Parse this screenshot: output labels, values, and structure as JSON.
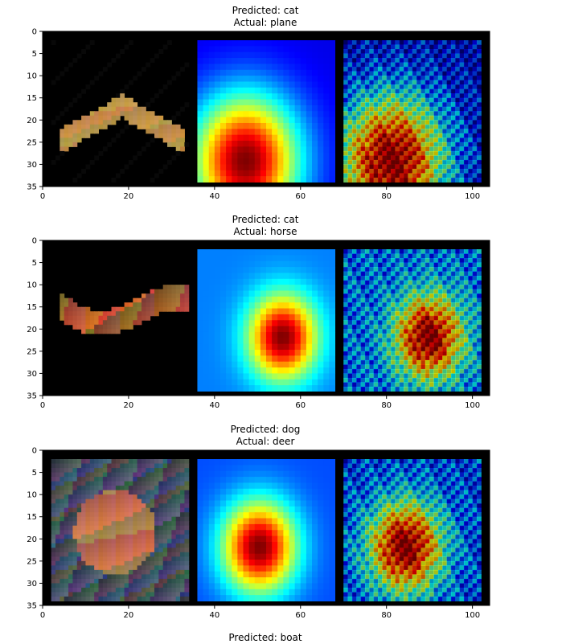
{
  "chart_data": [
    {
      "type": "image",
      "title_lines": [
        "Predicted: cat",
        "Actual: plane"
      ],
      "xlim": [
        0,
        104
      ],
      "ylim": [
        35,
        0
      ],
      "xticks": [
        0,
        20,
        40,
        60,
        80,
        100
      ],
      "yticks": [
        0,
        5,
        10,
        15,
        20,
        25,
        30,
        35
      ],
      "heat": {
        "center": [
          0.35,
          0.85
        ],
        "spread": 0.55,
        "base": 0.1
      }
    },
    {
      "type": "image",
      "title_lines": [
        "Predicted: cat",
        "Actual: horse"
      ],
      "xlim": [
        0,
        104
      ],
      "ylim": [
        35,
        0
      ],
      "xticks": [
        0,
        20,
        40,
        60,
        80,
        100
      ],
      "yticks": [
        0,
        5,
        10,
        15,
        20,
        25,
        30,
        35
      ],
      "heat": {
        "center": [
          0.62,
          0.62
        ],
        "spread": 0.35,
        "base": 0.25
      }
    },
    {
      "type": "image",
      "title_lines": [
        "Predicted: dog",
        "Actual: deer"
      ],
      "xlim": [
        0,
        104
      ],
      "ylim": [
        35,
        0
      ],
      "xticks": [
        0,
        20,
        40,
        60,
        80,
        100
      ],
      "yticks": [
        0,
        5,
        10,
        15,
        20,
        25,
        30,
        35
      ],
      "heat": {
        "center": [
          0.45,
          0.62
        ],
        "spread": 0.38,
        "base": 0.2
      }
    }
  ],
  "next_title_partial": "Predicted: boat"
}
